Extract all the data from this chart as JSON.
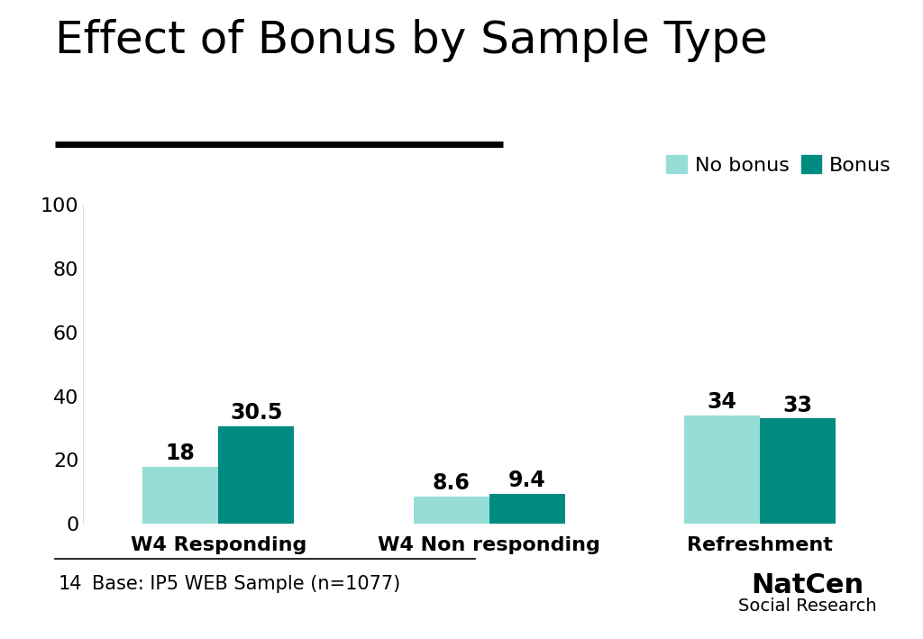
{
  "title": "Effect of Bonus by Sample Type",
  "categories": [
    "W4 Responding",
    "W4 Non responding",
    "Refreshment"
  ],
  "no_bonus_values": [
    18,
    8.6,
    34
  ],
  "bonus_values": [
    30.5,
    9.4,
    33
  ],
  "no_bonus_color": "#96DDD7",
  "bonus_color": "#008B80",
  "ylim": [
    0,
    100
  ],
  "yticks": [
    0,
    20,
    40,
    60,
    80,
    100
  ],
  "legend_labels": [
    "No bonus",
    "Bonus"
  ],
  "footnote_number": "14",
  "footnote_text": "Base: IP5 WEB Sample (n=1077)",
  "background_color": "#ffffff",
  "bar_width": 0.28,
  "title_fontsize": 36,
  "axis_fontsize": 16,
  "value_fontsize": 17,
  "legend_fontsize": 16,
  "footer_fontsize": 15,
  "natcen_fontsize": 22
}
